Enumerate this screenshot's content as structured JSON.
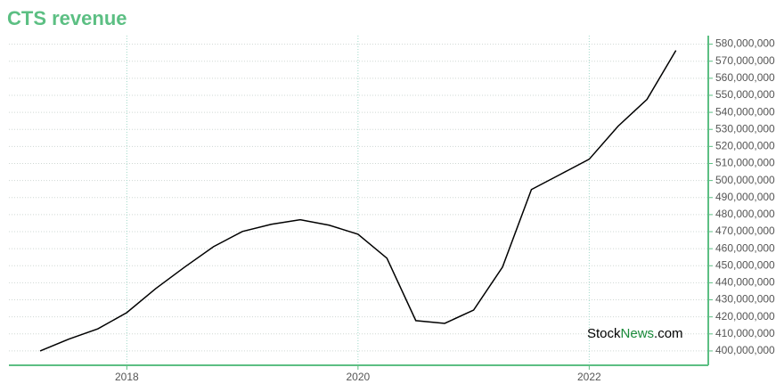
{
  "chart_data": {
    "type": "line",
    "title": "CTS revenue",
    "watermark": {
      "part1": "Stock",
      "part2": "News",
      "part3": ".com"
    },
    "x": [
      2017.25,
      2017.5,
      2017.75,
      2018.0,
      2018.25,
      2018.5,
      2018.75,
      2019.0,
      2019.25,
      2019.5,
      2019.75,
      2020.0,
      2020.25,
      2020.5,
      2020.75,
      2021.0,
      2021.25,
      2021.5,
      2021.75,
      2022.0,
      2022.25,
      2022.5,
      2022.75
    ],
    "series": [
      {
        "name": "CTS revenue",
        "color": "#000000",
        "values": [
          400000000,
          407000000,
          413000000,
          422500000,
          436600000,
          449200000,
          461200000,
          470100000,
          474300000,
          477000000,
          473800000,
          468500000,
          454400000,
          417800000,
          416200000,
          424000000,
          449200000,
          494700000,
          503600000,
          512500000,
          531900000,
          547600000,
          576300000
        ]
      }
    ],
    "xlim": [
      2016.98,
      2023.03
    ],
    "xticks": [
      2018,
      2020,
      2022
    ],
    "ylim": [
      391600000,
      585000000
    ],
    "yticks": [
      {
        "value": 400000000,
        "label": "400,000,000"
      },
      {
        "value": 410000000,
        "label": "410,000,000"
      },
      {
        "value": 420000000,
        "label": "420,000,000"
      },
      {
        "value": 430000000,
        "label": "430,000,000"
      },
      {
        "value": 440000000,
        "label": "440,000,000"
      },
      {
        "value": 450000000,
        "label": "450,000,000"
      },
      {
        "value": 460000000,
        "label": "460,000,000"
      },
      {
        "value": 470000000,
        "label": "470,000,000"
      },
      {
        "value": 480000000,
        "label": "480,000,000"
      },
      {
        "value": 490000000,
        "label": "490,000,000"
      },
      {
        "value": 500000000,
        "label": "500,000,000"
      },
      {
        "value": 510000000,
        "label": "510,000,000"
      },
      {
        "value": 520000000,
        "label": "520,000,000"
      },
      {
        "value": 530000000,
        "label": "530,000,000"
      },
      {
        "value": 540000000,
        "label": "540,000,000"
      },
      {
        "value": 550000000,
        "label": "550,000,000"
      },
      {
        "value": 560000000,
        "label": "560,000,000"
      },
      {
        "value": 570000000,
        "label": "570,000,000"
      },
      {
        "value": 580000000,
        "label": "580,000,000"
      }
    ],
    "grid": true,
    "axis_color": "#5cbf83"
  }
}
